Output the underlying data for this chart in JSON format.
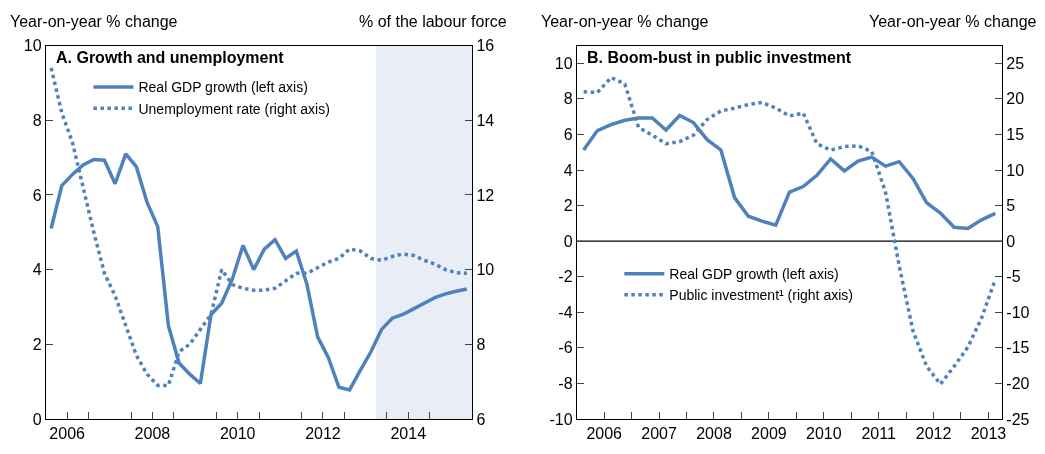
{
  "chart_data": [
    {
      "type": "line",
      "title": "A. Growth and unemployment",
      "ylabel": "Year-on-year % change",
      "y2label": "% of the labour force",
      "x": [
        2006.125,
        2006.375,
        2006.625,
        2006.875,
        2007.125,
        2007.375,
        2007.625,
        2007.875,
        2008.125,
        2008.375,
        2008.625,
        2008.875,
        2009.125,
        2009.375,
        2009.625,
        2009.875,
        2010.125,
        2010.375,
        2010.625,
        2010.875,
        2011.125,
        2011.375,
        2011.625,
        2011.875,
        2012.125,
        2012.375,
        2012.625,
        2012.875,
        2013.125,
        2013.375,
        2013.625,
        2013.875,
        2014.125,
        2014.375,
        2014.625,
        2014.875,
        2015.125,
        2015.375,
        2015.625,
        2015.875
      ],
      "xlim": [
        2006,
        2016
      ],
      "xticks": [
        {
          "value": 2006.5,
          "label": "2006"
        },
        {
          "value": 2007,
          "label": null
        },
        {
          "value": 2008,
          "label": null
        },
        {
          "value": 2008.5,
          "label": "2008"
        },
        {
          "value": 2009,
          "label": null
        },
        {
          "value": 2010,
          "label": null
        },
        {
          "value": 2010.5,
          "label": "2010"
        },
        {
          "value": 2011,
          "label": null
        },
        {
          "value": 2012,
          "label": null
        },
        {
          "value": 2012.5,
          "label": "2012"
        },
        {
          "value": 2013,
          "label": null
        },
        {
          "value": 2014,
          "label": null
        },
        {
          "value": 2014.5,
          "label": "2014"
        },
        {
          "value": 2015,
          "label": null
        }
      ],
      "ylim": [
        0,
        10
      ],
      "yticks": [
        0,
        2,
        4,
        6,
        8,
        10
      ],
      "y2lim": [
        6,
        16
      ],
      "y2ticks": [
        6,
        8,
        10,
        12,
        14,
        16
      ],
      "legend": "top left",
      "bands": [
        {
          "axis": "x",
          "from": 2013.75,
          "to": 2016,
          "color": "#e9edf6"
        }
      ],
      "series": [
        {
          "name": "Real GDP growth (left axis)",
          "color": "#4f81bd",
          "line_style": "solid",
          "values": [
            5.1,
            6.25,
            6.55,
            6.8,
            6.95,
            6.93,
            6.3,
            7.1,
            6.75,
            5.8,
            5.15,
            2.5,
            1.5,
            1.2,
            0.95,
            2.8,
            3.1,
            3.75,
            4.65,
            4.0,
            4.55,
            4.8,
            4.3,
            4.5,
            3.6,
            2.2,
            1.65,
            0.85,
            0.78,
            1.3,
            1.8,
            2.4,
            2.7,
            2.8,
            2.95,
            3.1,
            3.25,
            3.35,
            3.42,
            3.48
          ]
        },
        {
          "name": "Unemployment rate (right axis)",
          "color": "#4f81bd",
          "line_style": "dotted",
          "axis": "y2",
          "values": [
            15.4,
            14.2,
            13.4,
            12.2,
            11.0,
            9.9,
            9.3,
            8.5,
            7.7,
            7.2,
            6.9,
            6.9,
            7.8,
            8.0,
            8.4,
            8.8,
            10.0,
            9.6,
            9.5,
            9.45,
            9.45,
            9.5,
            9.7,
            9.9,
            9.9,
            10.05,
            10.2,
            10.3,
            10.55,
            10.5,
            10.3,
            10.25,
            10.35,
            10.42,
            10.38,
            10.25,
            10.15,
            10.0,
            9.92,
            9.9
          ]
        }
      ]
    },
    {
      "type": "line",
      "title": "B. Boom-bust in public investment",
      "ylabel": "Year-on-year % change",
      "y2label": "Year-on-year % change",
      "x": [
        2006.125,
        2006.375,
        2006.625,
        2006.875,
        2007.125,
        2007.375,
        2007.625,
        2007.875,
        2008.125,
        2008.375,
        2008.625,
        2008.875,
        2009.125,
        2009.375,
        2009.625,
        2009.875,
        2010.125,
        2010.375,
        2010.625,
        2010.875,
        2011.125,
        2011.375,
        2011.625,
        2011.875,
        2012.125,
        2012.375,
        2012.625,
        2012.875,
        2013.125,
        2013.375,
        2013.625
      ],
      "xlim": [
        2006,
        2013.75
      ],
      "xticks": [
        {
          "value": 2006.5,
          "label": "2006"
        },
        {
          "value": 2007,
          "label": null
        },
        {
          "value": 2007.5,
          "label": "2007"
        },
        {
          "value": 2008,
          "label": null
        },
        {
          "value": 2008.5,
          "label": "2008"
        },
        {
          "value": 2009,
          "label": null
        },
        {
          "value": 2009.5,
          "label": "2009"
        },
        {
          "value": 2010,
          "label": null
        },
        {
          "value": 2010.5,
          "label": "2010"
        },
        {
          "value": 2011,
          "label": null
        },
        {
          "value": 2011.5,
          "label": "2011"
        },
        {
          "value": 2012,
          "label": null
        },
        {
          "value": 2012.5,
          "label": "2012"
        },
        {
          "value": 2013,
          "label": null
        },
        {
          "value": 2013.5,
          "label": "2013"
        }
      ],
      "ylim": [
        -10,
        11
      ],
      "yticks": [
        -10,
        -8,
        -6,
        -4,
        -2,
        0,
        2,
        4,
        6,
        8,
        10
      ],
      "y2lim": [
        -25,
        27.5
      ],
      "y2ticks": [
        -25,
        -20,
        -15,
        -10,
        -5,
        0,
        5,
        10,
        15,
        20,
        25
      ],
      "legend": "bottom left",
      "ref_lines": [
        {
          "axis": "y",
          "value": 0,
          "color": "#000000"
        }
      ],
      "series": [
        {
          "name": "Real GDP growth (left axis)",
          "color": "#4f81bd",
          "line_style": "solid",
          "values": [
            5.13,
            6.22,
            6.55,
            6.8,
            6.93,
            6.93,
            6.25,
            7.07,
            6.67,
            5.71,
            5.13,
            2.45,
            1.4,
            1.13,
            0.9,
            2.76,
            3.07,
            3.7,
            4.62,
            3.95,
            4.5,
            4.73,
            4.22,
            4.47,
            3.53,
            2.16,
            1.58,
            0.78,
            0.71,
            1.2,
            1.56
          ]
        },
        {
          "name": "Public investment¹ (right axis)",
          "color": "#4f81bd",
          "line_style": "dotted",
          "axis": "y2",
          "values": [
            21.0,
            20.9,
            23.0,
            22.1,
            16.0,
            14.9,
            13.7,
            14.0,
            14.9,
            17.1,
            18.3,
            18.7,
            19.2,
            19.5,
            18.7,
            17.6,
            18.0,
            13.7,
            12.8,
            13.3,
            13.4,
            12.6,
            6.9,
            -3.5,
            -12.6,
            -17.6,
            -20.1,
            -17.6,
            -14.9,
            -10.8,
            -5.4
          ]
        }
      ]
    }
  ]
}
